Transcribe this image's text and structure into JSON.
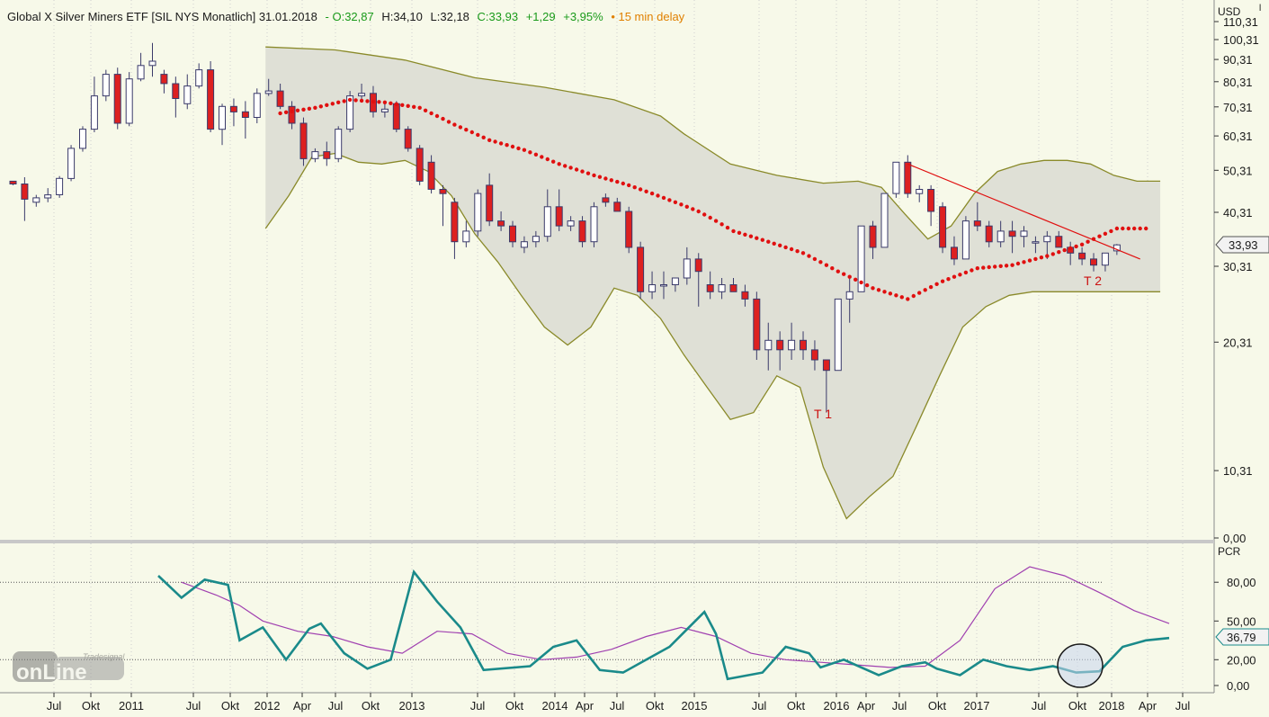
{
  "header": {
    "title": "Global X Silver Miners ETF [SIL NYS Monatlich] 31.01.2018",
    "open": "- O:32,87",
    "high": "H:34,10",
    "low": "L:32,18",
    "close": "C:33,93",
    "change": "+1,29",
    "change_pct": "+3,95%",
    "delay": "• 15 min delay"
  },
  "price_axis": {
    "currency": "USD",
    "ticks": [
      "110,31",
      "100,31",
      "90,31",
      "80,31",
      "70,31",
      "60,31",
      "50,31",
      "40,31",
      "30,31",
      "20,31",
      "10,31",
      "0,00"
    ],
    "last_price": "33,93",
    "scale": "log"
  },
  "indicator": {
    "name": "PCR",
    "ticks": [
      "80,00",
      "50,00",
      "20,00",
      "0,00"
    ],
    "last_value": "36,79",
    "levels": [
      80,
      20
    ]
  },
  "time_axis": {
    "labels": [
      "Jul",
      "Okt",
      "2011",
      "Jul",
      "Okt",
      "2012",
      "Apr",
      "Jul",
      "Okt",
      "2013",
      "Jul",
      "Okt",
      "2014",
      "Apr",
      "Jul",
      "Okt",
      "2015",
      "Jul",
      "Okt",
      "2016",
      "Apr",
      "Jul",
      "Okt",
      "2017",
      "Jul",
      "Okt",
      "2018",
      "Apr",
      "Jul"
    ]
  },
  "annotations": {
    "t1": "T 1",
    "t2": "T 2"
  },
  "logo": {
    "small": "Tradesignal",
    "main": "onLine"
  },
  "colors": {
    "background": "#f7f9e9",
    "band_fill": "#dfe0d6",
    "band_line": "#8a8a2a",
    "sma": "#e01010",
    "down_candle": "#dd2020",
    "up_candle": "#ffffff",
    "wick": "#3a3a6a",
    "pcr_line": "#1a8a8a",
    "pcr_signal": "#a040b0",
    "trendline": "#e01010",
    "header_open": "#1a9a1a",
    "header_delay": "#e08000"
  },
  "chart_data": {
    "type": "candlestick",
    "start": "2010-06",
    "interval": "monthly",
    "candles": [
      [
        47.5,
        47.5,
        46.5,
        46.8
      ],
      [
        46.8,
        48.5,
        38.5,
        43.2
      ],
      [
        42.5,
        44.2,
        41.5,
        43.5
      ],
      [
        43.5,
        45.8,
        42.5,
        44.2
      ],
      [
        44.2,
        48.8,
        43.5,
        48.2
      ],
      [
        48.2,
        57.5,
        47.5,
        56.5
      ],
      [
        56.5,
        63.5,
        55.5,
        62.5
      ],
      [
        62.5,
        82.5,
        61.5,
        74.5
      ],
      [
        74.5,
        85.5,
        72.5,
        83.5
      ],
      [
        83.5,
        86.5,
        62.5,
        64.5
      ],
      [
        64.5,
        84.5,
        63.5,
        81.5
      ],
      [
        81.5,
        93.5,
        80.5,
        87.5
      ],
      [
        87.5,
        98.5,
        82.5,
        89.5
      ],
      [
        83.5,
        85.5,
        75.5,
        79.5
      ],
      [
        79.5,
        82.5,
        66.5,
        73.5
      ],
      [
        71.5,
        83.5,
        69.5,
        78.5
      ],
      [
        78.5,
        88.5,
        77.5,
        85.5
      ],
      [
        85.5,
        89.5,
        61.5,
        62.5
      ],
      [
        62.5,
        71.5,
        57.5,
        70.5
      ],
      [
        70.5,
        73.5,
        63.5,
        68.5
      ],
      [
        68.5,
        72.5,
        59.5,
        66.5
      ],
      [
        66.5,
        77.5,
        64.5,
        75.5
      ],
      [
        75.5,
        81.5,
        74.5,
        76.5
      ],
      [
        76.5,
        79.5,
        69.5,
        70.5
      ],
      [
        70.5,
        72.5,
        62.5,
        64.5
      ],
      [
        64.5,
        66.5,
        51.5,
        53.5
      ],
      [
        53.5,
        56.5,
        52.5,
        55.5
      ],
      [
        55.5,
        58.5,
        51.5,
        53.5
      ],
      [
        53.5,
        63.5,
        52.5,
        62.5
      ],
      [
        62.5,
        76.5,
        61.5,
        74.5
      ],
      [
        74.5,
        79.5,
        72.5,
        75.5
      ],
      [
        75.5,
        78.5,
        66.5,
        68.5
      ],
      [
        68.5,
        72.5,
        66.5,
        69.5
      ],
      [
        71.5,
        72.5,
        61.5,
        62.5
      ],
      [
        62.5,
        63.5,
        55.5,
        56.5
      ],
      [
        56.5,
        57.5,
        46.5,
        47.5
      ],
      [
        52.5,
        54.5,
        44.5,
        45.5
      ],
      [
        45.5,
        46.5,
        37.5,
        44.5
      ],
      [
        42.5,
        43.5,
        31.5,
        34.5
      ],
      [
        34.5,
        38.5,
        33.5,
        36.5
      ],
      [
        36.5,
        45.5,
        35.5,
        44.5
      ],
      [
        46.5,
        49.5,
        37.5,
        38.5
      ],
      [
        38.5,
        40.5,
        36.5,
        37.5
      ],
      [
        37.5,
        38.5,
        33.5,
        34.5
      ],
      [
        33.5,
        35.5,
        32.5,
        34.5
      ],
      [
        34.5,
        36.5,
        33.5,
        35.5
      ],
      [
        35.5,
        45.5,
        34.5,
        41.5
      ],
      [
        41.5,
        45.5,
        36.5,
        37.5
      ],
      [
        37.5,
        39.5,
        36.5,
        38.5
      ],
      [
        38.5,
        39.5,
        33.5,
        34.5
      ],
      [
        34.5,
        42.5,
        33.5,
        41.5
      ],
      [
        43.5,
        44.5,
        41.5,
        42.5
      ],
      [
        42.5,
        43.5,
        40.5,
        40.5
      ],
      [
        40.5,
        41.5,
        32.5,
        33.5
      ],
      [
        33.5,
        34.5,
        25.5,
        26.5
      ],
      [
        26.5,
        29.5,
        25.5,
        27.5
      ],
      [
        27.5,
        29.5,
        25.5,
        27.5
      ],
      [
        27.5,
        28.5,
        26.5,
        28.5
      ],
      [
        28.5,
        33.5,
        27.5,
        31.5
      ],
      [
        31.5,
        32.5,
        24.5,
        29.5
      ],
      [
        27.5,
        29.5,
        25.5,
        26.5
      ],
      [
        26.5,
        28.5,
        25.5,
        27.5
      ],
      [
        27.5,
        28.5,
        26.5,
        26.5
      ],
      [
        26.5,
        27.5,
        24.5,
        25.5
      ],
      [
        25.5,
        26.5,
        18.5,
        19.5
      ],
      [
        19.5,
        22.5,
        17.5,
        20.5
      ],
      [
        20.5,
        21.5,
        17.5,
        19.5
      ],
      [
        19.5,
        22.5,
        18.5,
        20.5
      ],
      [
        20.5,
        21.5,
        18.5,
        19.5
      ],
      [
        19.5,
        20.5,
        17.5,
        18.5
      ],
      [
        18.5,
        18.5,
        14.0,
        17.5
      ],
      [
        17.5,
        25.5,
        17.5,
        25.5
      ],
      [
        25.5,
        28.5,
        22.5,
        26.5
      ],
      [
        26.5,
        37.5,
        26.5,
        37.5
      ],
      [
        37.5,
        38.5,
        31.5,
        33.5
      ],
      [
        33.5,
        44.5,
        33.5,
        44.5
      ],
      [
        44.5,
        52.5,
        43.5,
        52.5
      ],
      [
        52.5,
        54.5,
        43.5,
        44.5
      ],
      [
        44.5,
        46.5,
        42.5,
        45.5
      ],
      [
        45.5,
        46.5,
        37.5,
        40.5
      ],
      [
        41.5,
        42.5,
        32.5,
        33.5
      ],
      [
        33.5,
        35.5,
        30.5,
        31.5
      ],
      [
        31.5,
        39.5,
        31.5,
        38.5
      ],
      [
        38.5,
        42.5,
        36.5,
        37.5
      ],
      [
        37.5,
        38.5,
        33.5,
        34.5
      ],
      [
        34.5,
        38.5,
        33.5,
        36.5
      ],
      [
        36.5,
        38.5,
        32.5,
        35.5
      ],
      [
        35.5,
        37.5,
        33.5,
        36.5
      ],
      [
        34.5,
        35.5,
        32.5,
        34.5
      ],
      [
        34.5,
        36.5,
        31.5,
        35.5
      ],
      [
        35.5,
        36.5,
        33.5,
        33.5
      ],
      [
        33.5,
        34.5,
        30.5,
        32.5
      ],
      [
        32.5,
        33.5,
        30.5,
        31.5
      ],
      [
        31.5,
        32.5,
        29.5,
        30.5
      ],
      [
        30.5,
        32.5,
        29.5,
        32.5
      ],
      [
        32.87,
        34.1,
        32.18,
        33.93
      ]
    ],
    "bollinger_upper": [
      [
        22,
        96.5
      ],
      [
        28,
        95
      ],
      [
        34,
        90
      ],
      [
        40,
        82
      ],
      [
        46,
        78
      ],
      [
        52,
        73
      ],
      [
        56,
        67
      ],
      [
        58,
        61
      ],
      [
        62,
        52
      ],
      [
        66,
        49
      ],
      [
        70,
        47
      ],
      [
        73,
        47.5
      ],
      [
        75,
        46
      ],
      [
        77,
        40
      ],
      [
        79,
        35
      ],
      [
        81,
        37.5
      ],
      [
        83,
        44.5
      ],
      [
        85,
        50
      ],
      [
        87,
        52
      ],
      [
        89,
        53
      ],
      [
        91,
        53
      ],
      [
        93,
        52
      ],
      [
        95,
        49
      ],
      [
        97,
        47.5
      ],
      [
        99,
        47.5
      ]
    ],
    "bollinger_lower": [
      [
        22,
        37
      ],
      [
        24,
        44
      ],
      [
        26,
        54
      ],
      [
        28,
        55
      ],
      [
        30,
        52.5
      ],
      [
        32,
        52
      ],
      [
        34,
        53
      ],
      [
        36,
        50
      ],
      [
        38,
        44
      ],
      [
        40,
        36
      ],
      [
        42,
        31
      ],
      [
        44,
        26
      ],
      [
        46,
        22
      ],
      [
        48,
        20
      ],
      [
        50,
        22
      ],
      [
        52,
        27
      ],
      [
        54,
        26
      ],
      [
        56,
        23
      ],
      [
        58,
        19
      ],
      [
        60,
        16
      ],
      [
        62,
        13.5
      ],
      [
        64,
        14
      ],
      [
        66,
        17
      ],
      [
        68,
        16
      ],
      [
        70,
        10.5
      ],
      [
        72,
        8
      ],
      [
        74,
        9
      ],
      [
        76,
        10
      ],
      [
        78,
        13
      ],
      [
        80,
        17
      ],
      [
        82,
        22
      ],
      [
        84,
        24.5
      ],
      [
        86,
        26
      ],
      [
        88,
        26.5
      ],
      [
        90,
        26.5
      ]
    ],
    "sma_dots": [
      [
        23,
        68
      ],
      [
        26,
        70
      ],
      [
        29,
        73
      ],
      [
        32,
        72
      ],
      [
        35,
        70
      ],
      [
        38,
        64
      ],
      [
        41,
        59
      ],
      [
        44,
        56
      ],
      [
        47,
        52
      ],
      [
        50,
        49
      ],
      [
        53,
        46.5
      ],
      [
        56,
        43.5
      ],
      [
        59,
        40.5
      ],
      [
        62,
        36.5
      ],
      [
        65,
        34.5
      ],
      [
        68,
        32.5
      ],
      [
        71,
        29.5
      ],
      [
        74,
        27
      ],
      [
        77,
        25.5
      ],
      [
        80,
        28
      ],
      [
        83,
        30
      ],
      [
        86,
        30.5
      ],
      [
        89,
        32
      ],
      [
        92,
        34
      ],
      [
        95,
        37
      ],
      [
        98,
        37
      ]
    ],
    "trendline": [
      [
        77,
        52
      ],
      [
        97,
        31.5
      ]
    ],
    "pcr": {
      "main": [
        [
          13,
          85
        ],
        [
          15,
          68
        ],
        [
          17,
          82
        ],
        [
          19,
          78
        ],
        [
          20,
          35
        ],
        [
          22,
          45
        ],
        [
          24,
          20
        ],
        [
          26,
          44
        ],
        [
          27,
          48
        ],
        [
          29,
          25
        ],
        [
          31,
          13
        ],
        [
          33,
          20
        ],
        [
          35,
          88
        ],
        [
          37,
          65
        ],
        [
          39,
          45
        ],
        [
          41,
          12
        ],
        [
          45,
          15
        ],
        [
          47,
          30
        ],
        [
          49,
          35
        ],
        [
          51,
          12
        ],
        [
          53,
          10
        ],
        [
          55,
          20
        ],
        [
          57,
          30
        ],
        [
          60,
          57
        ],
        [
          61,
          40
        ],
        [
          62,
          5
        ],
        [
          65,
          10
        ],
        [
          67,
          30
        ],
        [
          69,
          25
        ],
        [
          70,
          14
        ],
        [
          72,
          20
        ],
        [
          75,
          8
        ],
        [
          77,
          15
        ],
        [
          79,
          18
        ],
        [
          80,
          13
        ],
        [
          82,
          8
        ],
        [
          84,
          20
        ],
        [
          86,
          15
        ],
        [
          88,
          12
        ],
        [
          90,
          15
        ],
        [
          92,
          10
        ],
        [
          94,
          11
        ],
        [
          96,
          30
        ],
        [
          98,
          35
        ],
        [
          100,
          36.79
        ]
      ],
      "signal": [
        [
          15,
          80
        ],
        [
          18,
          70
        ],
        [
          20,
          62
        ],
        [
          22,
          50
        ],
        [
          25,
          42
        ],
        [
          28,
          38
        ],
        [
          31,
          30
        ],
        [
          34,
          25
        ],
        [
          37,
          42
        ],
        [
          40,
          40
        ],
        [
          43,
          25
        ],
        [
          46,
          20
        ],
        [
          49,
          22
        ],
        [
          52,
          28
        ],
        [
          55,
          38
        ],
        [
          58,
          45
        ],
        [
          61,
          38
        ],
        [
          64,
          25
        ],
        [
          67,
          20
        ],
        [
          70,
          18
        ],
        [
          73,
          16
        ],
        [
          76,
          14
        ],
        [
          79,
          15
        ],
        [
          82,
          35
        ],
        [
          85,
          75
        ],
        [
          88,
          92
        ],
        [
          91,
          85
        ],
        [
          94,
          72
        ],
        [
          97,
          58
        ],
        [
          100,
          48
        ]
      ]
    }
  }
}
